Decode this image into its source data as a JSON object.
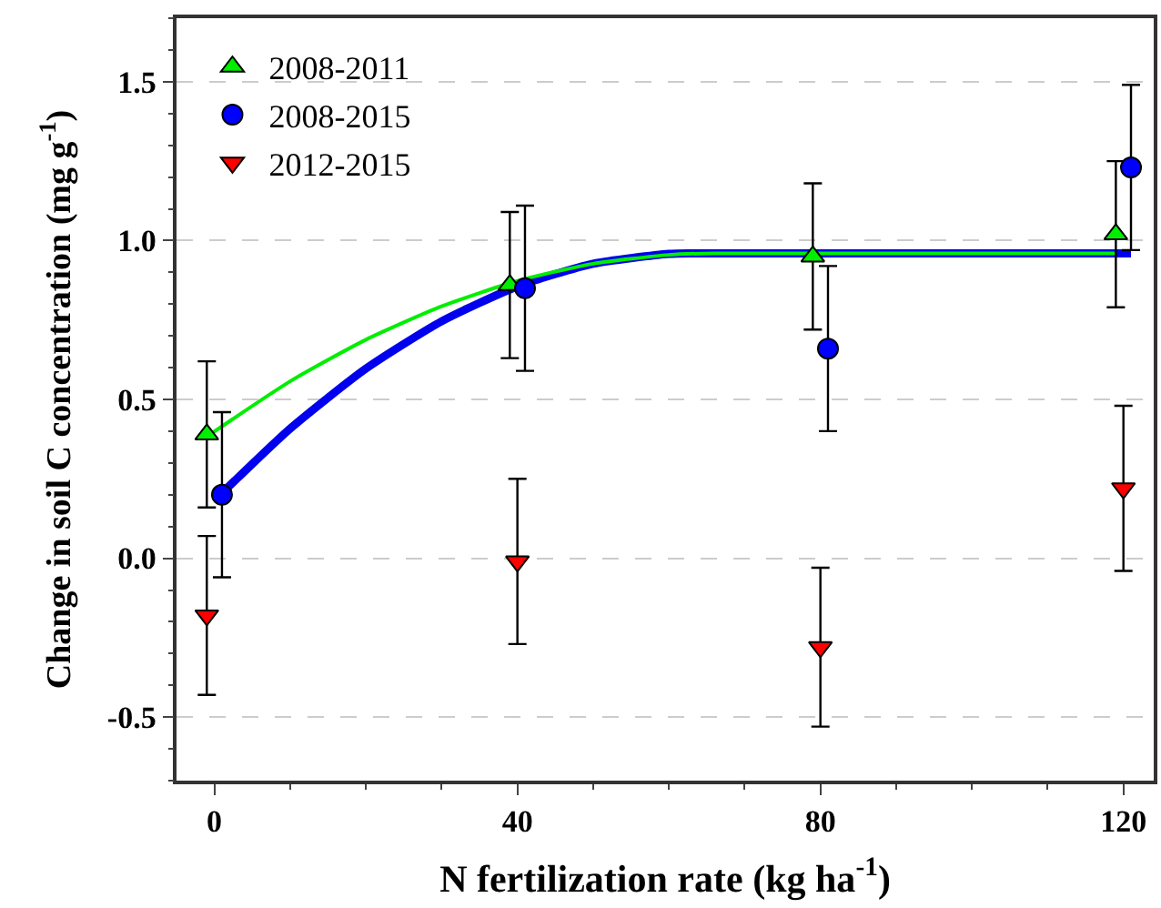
{
  "chart_data": {
    "type": "scatter",
    "xlabel": "N fertilization rate (kg ha$^{-1}$)",
    "ylabel": "Change in soil C concentration (mg g$^{-1}$)",
    "xlim": [
      -5,
      124
    ],
    "xticks": [
      0,
      40,
      80,
      120
    ],
    "ylim": [
      -0.7,
      1.7
    ],
    "yticks": [
      -0.5,
      {
        "value": 0,
        "label": "0.0"
      },
      0.5,
      {
        "value": 1,
        "label": "1.0"
      },
      1.5
    ],
    "grid": "y",
    "legend": "top left",
    "series": [
      {
        "type": "line",
        "color": "#0000ee",
        "x": [
          1,
          10,
          20,
          30,
          40,
          50,
          60,
          63,
          121
        ],
        "values": [
          0.205,
          0.408,
          0.597,
          0.746,
          0.856,
          0.927,
          0.958,
          0.96,
          0.96
        ],
        "marker": "none",
        "line_style": "solid"
      },
      {
        "type": "line",
        "color": "#00ee00",
        "x": [
          -1,
          10,
          20,
          30,
          40,
          50,
          60,
          66,
          119
        ],
        "values": [
          0.383,
          0.557,
          0.688,
          0.793,
          0.873,
          0.927,
          0.955,
          0.96,
          0.96
        ],
        "marker": "none",
        "line_style": "solid"
      },
      {
        "name": "2008-2011",
        "color": "#00ee00",
        "marker": "triangle",
        "x": [
          -1,
          39,
          79,
          119
        ],
        "values": [
          0.39,
          0.86,
          0.95,
          1.02
        ],
        "errors": [
          0.23,
          0.23,
          0.23,
          0.23
        ]
      },
      {
        "name": "2008-2015",
        "color": "#0000ff",
        "marker": "circle",
        "x": [
          1,
          41,
          81,
          121
        ],
        "values": [
          0.2,
          0.85,
          0.66,
          1.23
        ],
        "errors": [
          0.26,
          0.26,
          0.26,
          0.26
        ]
      },
      {
        "name": "2012-2015",
        "color": "#ff0000",
        "marker": "triangle-down",
        "x": [
          -1,
          40,
          80,
          120
        ],
        "values": [
          -0.18,
          -0.01,
          -0.28,
          0.22
        ],
        "errors": [
          0.25,
          0.26,
          0.25,
          0.26
        ]
      }
    ]
  }
}
